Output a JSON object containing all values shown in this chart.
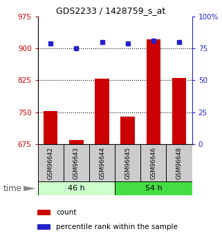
{
  "title": "GDS2233 / 1428759_s_at",
  "samples": [
    "GSM96642",
    "GSM96643",
    "GSM96644",
    "GSM96645",
    "GSM96646",
    "GSM96648"
  ],
  "groups": [
    {
      "label": "46 h",
      "indices": [
        0,
        1,
        2
      ],
      "color": "#ccffcc"
    },
    {
      "label": "54 h",
      "indices": [
        3,
        4,
        5
      ],
      "color": "#44dd44"
    }
  ],
  "count_values": [
    752,
    685,
    829,
    740,
    921,
    831
  ],
  "percentile_values": [
    79,
    75,
    80,
    79,
    81,
    80
  ],
  "ylim_left": [
    675,
    975
  ],
  "ylim_right": [
    0,
    100
  ],
  "yticks_left": [
    675,
    750,
    825,
    900,
    975
  ],
  "yticks_right": [
    0,
    25,
    50,
    75,
    100
  ],
  "hlines": [
    750,
    825,
    900
  ],
  "bar_color": "#cc0000",
  "dot_color": "#2222cc",
  "left_tick_color": "#cc0000",
  "right_tick_color": "#2222cc",
  "sample_box_color": "#cccccc",
  "time_label": "time",
  "legend_count": "count",
  "legend_percentile": "percentile rank within the sample"
}
